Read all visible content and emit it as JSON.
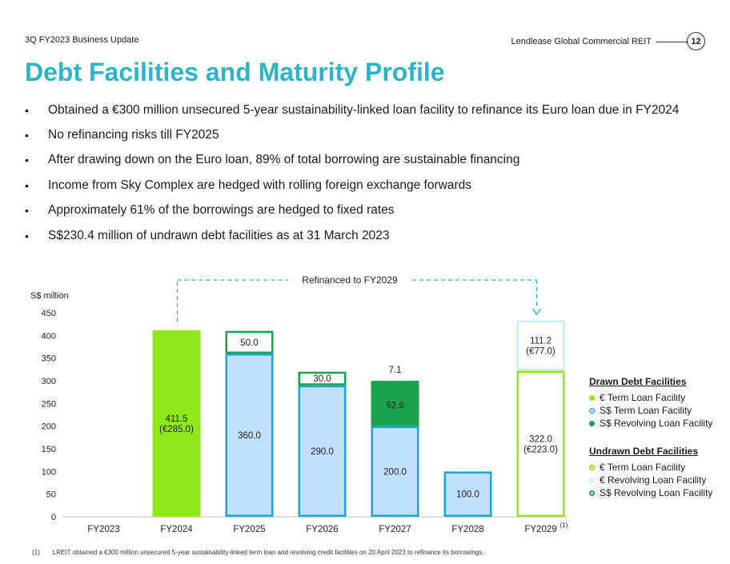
{
  "header": {
    "left": "3Q FY2023 Business Update",
    "right": "Lendlease Global Commercial REIT",
    "page": "12"
  },
  "title": "Debt Facilities and Maturity Profile",
  "bullets": [
    "Obtained a €300 million unsecured 5-year sustainability-linked loan facility to refinance its Euro loan due in FY2024",
    "No refinancing risks till FY2025",
    "After drawing down on the Euro loan, 89% of total borrowing are sustainable financing",
    "Income from Sky Complex are hedged with rolling foreign exchange forwards",
    "Approximately 61% of the borrowings are hedged to fixed rates",
    "S$230.4 million of undrawn debt facilities as at 31 March 2023"
  ],
  "bullet_glyph": "•",
  "annotation": "Refinanced to FY2029",
  "footnote": {
    "marker": "(1)",
    "text": "LREIT obtained a €300 million unsecured 5-year sustainability-linked term loan and revolving credit facilities on 20 April 2023 to refinance its borrowings."
  },
  "colors": {
    "euro_term_drawn": "#8fe81a",
    "sgd_term_drawn_fill": "#c0dffa",
    "sgd_term_drawn_stroke": "#1aa6d6",
    "sgd_revolving_drawn": "#1aa24f",
    "euro_term_undrawn": "#8fe81a",
    "euro_revolving_undrawn": "#c9ecfa",
    "sgd_revolving_undrawn": "#1aa24f",
    "title": "#2bb5c5",
    "dash": "#2bb5c5"
  },
  "chart_data": {
    "type": "bar",
    "stacked": true,
    "ylabel": "S$ million",
    "ylim": [
      0,
      450
    ],
    "yticks": [
      0,
      50,
      100,
      150,
      200,
      250,
      300,
      350,
      400,
      450
    ],
    "categories": [
      "FY2023",
      "FY2024",
      "FY2025",
      "FY2026",
      "FY2027",
      "FY2028",
      "FY2029"
    ],
    "category_superscripts": [
      "",
      "",
      "",
      "",
      "",
      "",
      "(1)"
    ],
    "legend_groups": [
      {
        "title": "Drawn Debt Facilities",
        "items": [
          {
            "key": "euro_term_drawn",
            "label": "€ Term Loan Facility",
            "style": "filled"
          },
          {
            "key": "sgd_term_drawn",
            "label": "S$ Term Loan Facility",
            "style": "filled-outline"
          },
          {
            "key": "sgd_revolving_drawn",
            "label": "S$ Revolving Loan Facility",
            "style": "filled"
          }
        ]
      },
      {
        "title": "Undrawn Debt Facilities",
        "items": [
          {
            "key": "euro_term_undrawn",
            "label": "€ Term Loan Facility",
            "style": "outline"
          },
          {
            "key": "euro_revolving_undrawn",
            "label": "€ Revolving Loan Facility",
            "style": "outline"
          },
          {
            "key": "sgd_revolving_undrawn",
            "label": "S$ Revolving Loan Facility",
            "style": "outline"
          }
        ]
      }
    ],
    "bars": [
      {
        "category": "FY2023",
        "segments": []
      },
      {
        "category": "FY2024",
        "segments": [
          {
            "key": "euro_term_drawn",
            "value": 411.5,
            "label": [
              "411.5",
              "(€285.0)"
            ]
          }
        ]
      },
      {
        "category": "FY2025",
        "segments": [
          {
            "key": "sgd_term_drawn",
            "value": 360.0,
            "label": [
              "360.0"
            ]
          },
          {
            "key": "sgd_revolving_undrawn",
            "value": 50.0,
            "label": [
              "50.0"
            ]
          }
        ]
      },
      {
        "category": "FY2026",
        "segments": [
          {
            "key": "sgd_term_drawn",
            "value": 290.0,
            "label": [
              "290.0"
            ]
          },
          {
            "key": "sgd_revolving_undrawn",
            "value": 30.0,
            "label": [
              "30.0"
            ]
          }
        ]
      },
      {
        "category": "FY2027",
        "segments": [
          {
            "key": "sgd_term_drawn",
            "value": 200.0,
            "label": [
              "200.0"
            ]
          },
          {
            "key": "sgd_revolving_drawn",
            "value": 92.9,
            "label": [
              "92.9"
            ]
          },
          {
            "key": "sgd_revolving_undrawn",
            "value": 7.1,
            "label": [
              "7.1"
            ],
            "label_outside": true
          }
        ]
      },
      {
        "category": "FY2028",
        "segments": [
          {
            "key": "sgd_term_drawn",
            "value": 100.0,
            "label": [
              "100.0"
            ]
          }
        ]
      },
      {
        "category": "FY2029",
        "segments": [
          {
            "key": "euro_term_undrawn",
            "value": 322.0,
            "label": [
              "322.0",
              "(€223.0)"
            ]
          },
          {
            "key": "euro_revolving_undrawn",
            "value": 111.2,
            "label": [
              "111.2",
              "(€77.0)"
            ]
          }
        ]
      }
    ]
  }
}
